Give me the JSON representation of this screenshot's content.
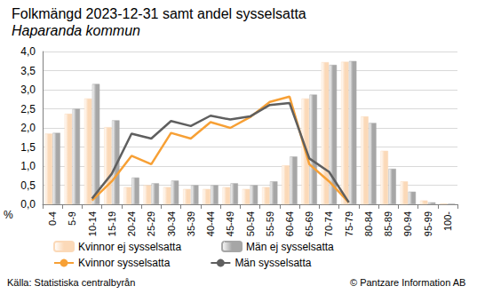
{
  "chart_data": {
    "type": "bar",
    "title": "Folkmängd 2023-12-31 samt andel sysselsatta",
    "subtitle": "Haparanda kommun",
    "ylabel": "%",
    "annotations": [
      "Källa: Statistiska centralbyrån",
      "© Pantzare Information AB"
    ],
    "categories": [
      "0-4",
      "5-9",
      "10-14",
      "15-19",
      "20-24",
      "25-29",
      "30-34",
      "35-39",
      "40-44",
      "45-49",
      "50-54",
      "55-59",
      "60-64",
      "65-69",
      "70-74",
      "75-79",
      "80-84",
      "85-89",
      "90-94",
      "95-99",
      "100-"
    ],
    "series": [
      {
        "name": "Kvinnor ej sysselsatta",
        "type": "bar",
        "color": "#fbd9b8",
        "values": [
          1.85,
          2.37,
          2.77,
          2.02,
          0.45,
          0.5,
          0.45,
          0.4,
          0.4,
          0.45,
          0.4,
          0.45,
          1.02,
          2.77,
          3.72,
          3.73,
          2.3,
          1.4,
          0.6,
          0.1,
          0.02
        ]
      },
      {
        "name": "Män ej sysselsatta",
        "type": "bar",
        "color": "#a6a6a6",
        "values": [
          1.87,
          2.5,
          3.15,
          2.2,
          0.7,
          0.55,
          0.62,
          0.5,
          0.5,
          0.55,
          0.5,
          0.6,
          1.25,
          2.87,
          3.65,
          3.75,
          2.13,
          0.93,
          0.33,
          0.05,
          0.01
        ]
      },
      {
        "name": "Kvinnor sysselsatta",
        "type": "line",
        "color": "#f7a035",
        "values": [
          null,
          null,
          0.1,
          0.6,
          1.27,
          1.05,
          1.87,
          1.72,
          2.15,
          2.0,
          2.28,
          2.68,
          2.82,
          1.05,
          0.6,
          0.05,
          null,
          null,
          null,
          null,
          null
        ]
      },
      {
        "name": "Män sysselsatta",
        "type": "line",
        "color": "#5f5f5f",
        "values": [
          null,
          null,
          0.15,
          0.8,
          1.85,
          1.72,
          2.18,
          2.05,
          2.32,
          2.22,
          2.3,
          2.6,
          2.65,
          1.2,
          0.85,
          0.05,
          null,
          null,
          null,
          null,
          null
        ]
      }
    ],
    "ylim": [
      0,
      4
    ],
    "yticks": [
      {
        "value": 0,
        "label": "0,0"
      },
      {
        "value": 0.5,
        "label": "0,5"
      },
      {
        "value": 1,
        "label": "1,0"
      },
      {
        "value": 1.5,
        "label": "1,5"
      },
      {
        "value": 2,
        "label": "2,0"
      },
      {
        "value": 2.5,
        "label": "2,5"
      },
      {
        "value": 3,
        "label": "3,0"
      },
      {
        "value": 3.5,
        "label": "3,5"
      },
      {
        "value": 4,
        "label": "4,0"
      }
    ],
    "grid": true,
    "legend": "bottom"
  }
}
